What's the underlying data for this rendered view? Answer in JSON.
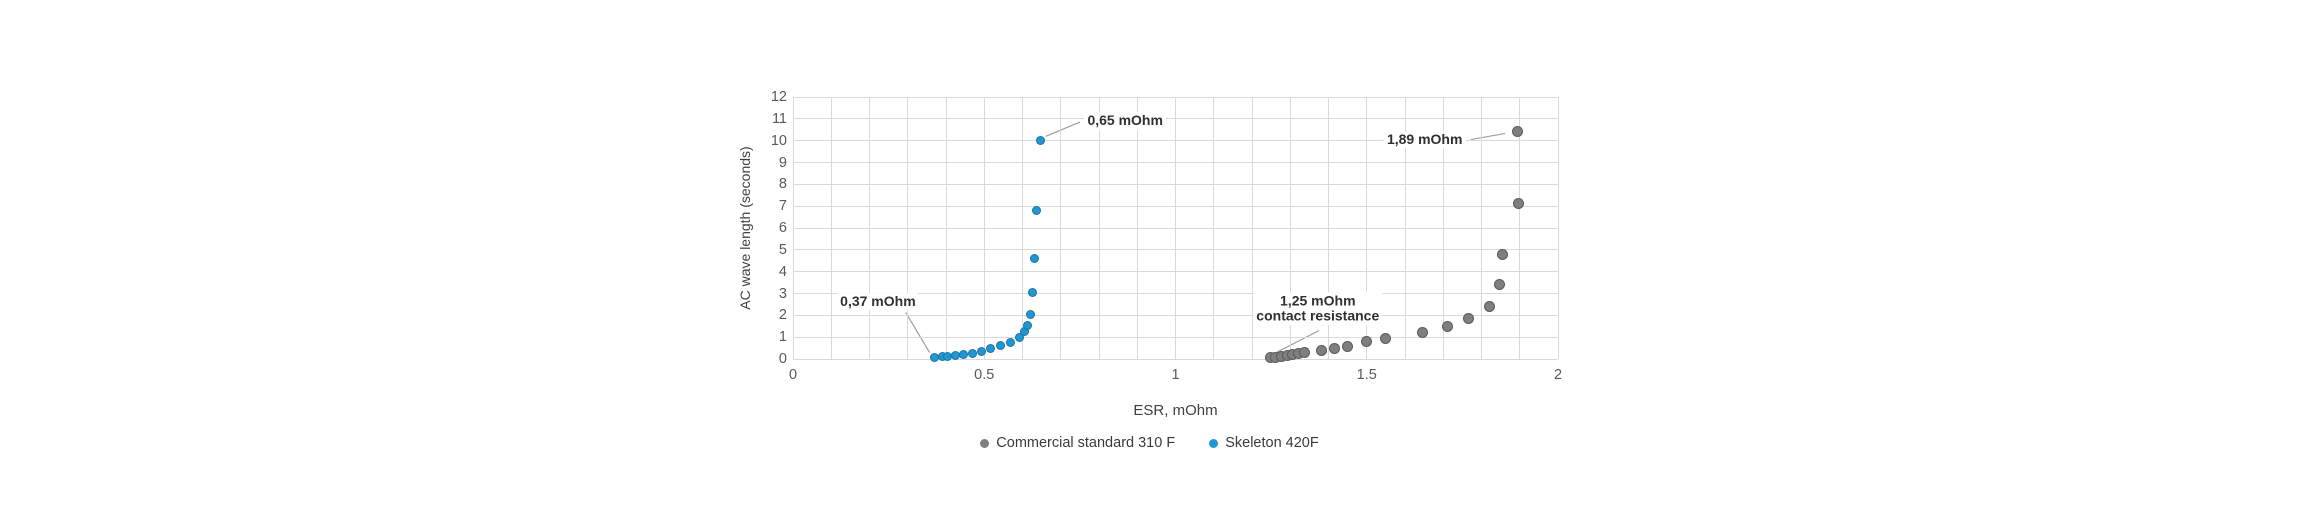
{
  "chart_data": {
    "type": "scatter",
    "xlabel": "ESR, mOhm",
    "ylabel": "AC wave length (seconds)",
    "xlim": [
      0,
      2
    ],
    "ylim": [
      0,
      12
    ],
    "x_grid_step": 0.1,
    "y_grid_step": 1,
    "x_ticks": [
      {
        "value": 0,
        "label": "0"
      },
      {
        "value": 0.5,
        "label": "0.5"
      },
      {
        "value": 1,
        "label": "1"
      },
      {
        "value": 1.5,
        "label": "1.5"
      },
      {
        "value": 2,
        "label": "2"
      }
    ],
    "y_ticks": [
      {
        "value": 0,
        "label": "0"
      },
      {
        "value": 1,
        "label": "1"
      },
      {
        "value": 2,
        "label": "2"
      },
      {
        "value": 3,
        "label": "3"
      },
      {
        "value": 4,
        "label": "4"
      },
      {
        "value": 5,
        "label": "5"
      },
      {
        "value": 6,
        "label": "6"
      },
      {
        "value": 7,
        "label": "7"
      },
      {
        "value": 8,
        "label": "8"
      },
      {
        "value": 9,
        "label": "9"
      },
      {
        "value": 10,
        "label": "10"
      },
      {
        "value": 11,
        "label": "11"
      },
      {
        "value": 12,
        "label": "12"
      }
    ],
    "grid": true,
    "legend_position": "bottom",
    "series": [
      {
        "name": "Commercial standard 310 F",
        "color": "#7f7f7f",
        "points": [
          [
            1.248,
            0.05
          ],
          [
            1.262,
            0.08
          ],
          [
            1.278,
            0.11
          ],
          [
            1.292,
            0.14
          ],
          [
            1.307,
            0.19
          ],
          [
            1.322,
            0.24
          ],
          [
            1.338,
            0.3
          ],
          [
            1.383,
            0.38
          ],
          [
            1.415,
            0.5
          ],
          [
            1.45,
            0.58
          ],
          [
            1.5,
            0.78
          ],
          [
            1.548,
            0.93
          ],
          [
            1.645,
            1.2
          ],
          [
            1.71,
            1.5
          ],
          [
            1.765,
            1.85
          ],
          [
            1.82,
            2.42
          ],
          [
            1.848,
            3.4
          ],
          [
            1.854,
            4.78
          ],
          [
            1.896,
            7.1
          ],
          [
            1.893,
            10.4
          ]
        ]
      },
      {
        "name": "Skeleton 420F",
        "color": "#2196d3",
        "points": [
          [
            0.37,
            0.08
          ],
          [
            0.39,
            0.1
          ],
          [
            0.405,
            0.13
          ],
          [
            0.425,
            0.16
          ],
          [
            0.447,
            0.2
          ],
          [
            0.468,
            0.27
          ],
          [
            0.492,
            0.36
          ],
          [
            0.517,
            0.47
          ],
          [
            0.543,
            0.6
          ],
          [
            0.568,
            0.75
          ],
          [
            0.592,
            0.98
          ],
          [
            0.605,
            1.25
          ],
          [
            0.613,
            1.52
          ],
          [
            0.62,
            2.05
          ],
          [
            0.627,
            3.05
          ],
          [
            0.631,
            4.6
          ],
          [
            0.636,
            6.78
          ],
          [
            0.648,
            10.0
          ]
        ]
      }
    ],
    "annotations": [
      {
        "lines": [
          "0,65 mOhm"
        ],
        "label_at": [
          0.762,
          10.9
        ],
        "anchor": "left",
        "leader": [
          [
            0.661,
            10.2
          ],
          [
            0.75,
            10.85
          ]
        ]
      },
      {
        "lines": [
          "0,37 mOhm"
        ],
        "label_at": [
          0.222,
          2.62
        ],
        "anchor": "center",
        "leader": [
          [
            0.295,
            2.12
          ],
          [
            0.357,
            0.3
          ]
        ]
      },
      {
        "lines": [
          "1,89 mOhm"
        ],
        "label_at": [
          1.758,
          10.05
        ],
        "anchor": "right",
        "leader": [
          [
            1.772,
            10.05
          ],
          [
            1.862,
            10.33
          ]
        ]
      },
      {
        "lines": [
          "1,25 mOhm",
          "contact resistance"
        ],
        "label_at": [
          1.372,
          2.3
        ],
        "anchor": "center",
        "leader": [
          [
            1.375,
            1.3
          ],
          [
            1.255,
            0.22
          ]
        ]
      }
    ]
  },
  "style": {
    "gridline_color": "#d9d9d9",
    "leader_line_color": "#9e9e9e",
    "tick_color": "#595959",
    "annotation_color": "#303030"
  }
}
